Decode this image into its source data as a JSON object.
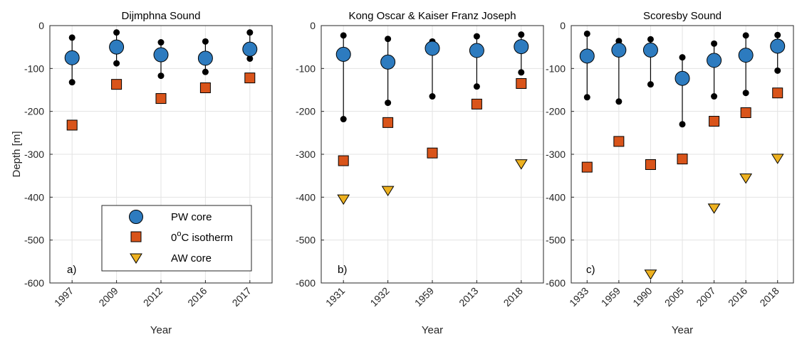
{
  "colors": {
    "pw": "#2d7bbf",
    "isotherm": "#d9541a",
    "aw": "#edb120",
    "whisker": "#000000",
    "grid": "#e3e3e3",
    "axis": "#262626"
  },
  "chart_data": [
    {
      "type": "scatter",
      "title": "Dijmphna Sound",
      "panel_label": "a)",
      "xlabel": "Year",
      "ylabel": "Depth [m]",
      "ylim": [
        -600,
        0
      ],
      "yticks": [
        "0",
        "-100",
        "-200",
        "-300",
        "-400",
        "-500",
        "-600"
      ],
      "categories": [
        "1997",
        "2009",
        "2012",
        "2016",
        "2017"
      ],
      "grid": true,
      "legend_position": "bottom-right",
      "series": [
        {
          "name": "PW core",
          "key": "pw",
          "values": [
            -75,
            -50,
            -68,
            -76,
            -55
          ],
          "upper": [
            -28,
            -16,
            -39,
            -37,
            -16
          ],
          "lower": [
            -132,
            -88,
            -117,
            -108,
            -77
          ]
        },
        {
          "name": "0°C isotherm",
          "key": "isotherm",
          "values": [
            -232,
            -137,
            -170,
            -145,
            -122
          ]
        },
        {
          "name": "AW core",
          "key": "aw",
          "values": [
            null,
            null,
            null,
            null,
            null
          ]
        }
      ]
    },
    {
      "type": "scatter",
      "title": "Kong Oscar & Kaiser Franz Joseph",
      "panel_label": "b)",
      "xlabel": "Year",
      "ylabel": "",
      "ylim": [
        -600,
        0
      ],
      "yticks": [
        "0",
        "-100",
        "-200",
        "-300",
        "-400",
        "-500",
        "-600"
      ],
      "categories": [
        "1931",
        "1932",
        "1959",
        "2013",
        "2018"
      ],
      "grid": true,
      "series": [
        {
          "name": "PW core",
          "key": "pw",
          "values": [
            -67,
            -85,
            -53,
            -58,
            -49
          ],
          "upper": [
            -23,
            -31,
            -37,
            -25,
            -21
          ],
          "lower": [
            -218,
            -180,
            -165,
            -142,
            -109
          ]
        },
        {
          "name": "0°C isotherm",
          "key": "isotherm",
          "values": [
            -315,
            -226,
            -297,
            -183,
            -135
          ]
        },
        {
          "name": "AW core",
          "key": "aw",
          "values": [
            -403,
            -383,
            null,
            null,
            -321
          ]
        }
      ]
    },
    {
      "type": "scatter",
      "title": "Scoresby Sound",
      "panel_label": "c)",
      "xlabel": "Year",
      "ylabel": "",
      "ylim": [
        -600,
        0
      ],
      "yticks": [
        "0",
        "-100",
        "-200",
        "-300",
        "-400",
        "-500",
        "-600"
      ],
      "categories": [
        "1933",
        "1959",
        "1990",
        "2005",
        "2007",
        "2016",
        "2018"
      ],
      "grid": true,
      "series": [
        {
          "name": "PW core",
          "key": "pw",
          "values": [
            -71,
            -57,
            -57,
            -123,
            -81,
            -69,
            -48
          ],
          "upper": [
            -19,
            -36,
            -32,
            -74,
            -42,
            -23,
            -22
          ],
          "lower": [
            -167,
            -177,
            -137,
            -230,
            -165,
            -157,
            -105
          ]
        },
        {
          "name": "0°C isotherm",
          "key": "isotherm",
          "values": [
            -330,
            -270,
            -324,
            -311,
            -223,
            -203,
            -157
          ]
        },
        {
          "name": "AW core",
          "key": "aw",
          "values": [
            null,
            null,
            -578,
            null,
            -424,
            -354,
            -308
          ]
        }
      ]
    }
  ],
  "legend": {
    "entries": [
      {
        "key": "pw",
        "label": "PW core"
      },
      {
        "key": "isotherm",
        "label_main": "0",
        "label_sup": "o",
        "label_rest": "C isotherm"
      },
      {
        "key": "aw",
        "label": "AW core"
      }
    ]
  }
}
